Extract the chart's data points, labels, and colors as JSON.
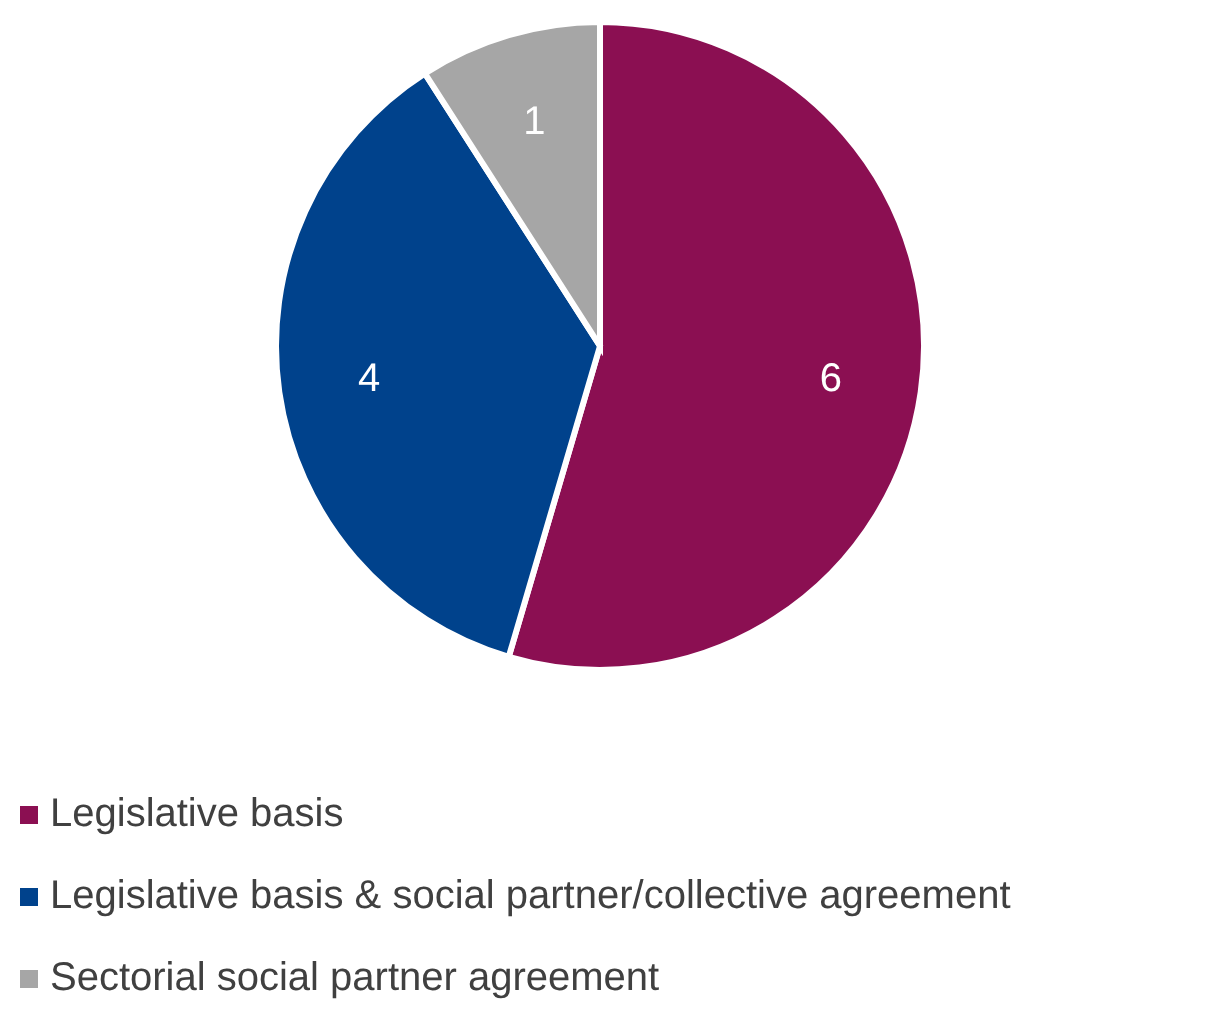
{
  "chart_data": {
    "type": "pie",
    "categories": [
      "Legislative basis",
      "Legislative basis & social partner/collective agreement",
      "Sectorial social partner agreement"
    ],
    "values": [
      6,
      4,
      1
    ],
    "colors": [
      "#8b0f52",
      "#00428c",
      "#a6a6a6"
    ],
    "data_labels": true,
    "legend": "bottom left"
  }
}
